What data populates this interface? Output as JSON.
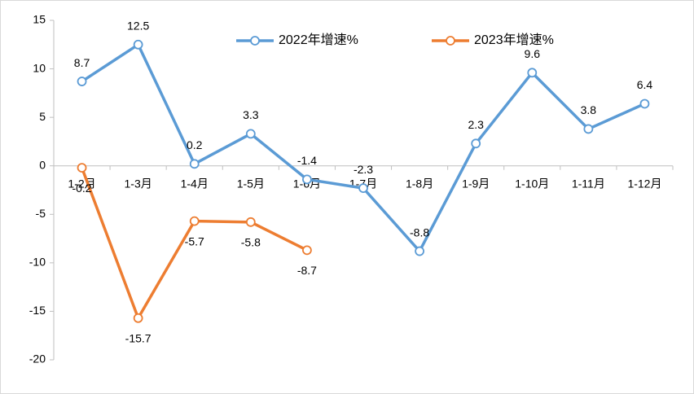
{
  "chart_data": {
    "type": "line",
    "categories": [
      "1-2月",
      "1-3月",
      "1-4月",
      "1-5月",
      "1-6月",
      "1-7月",
      "1-8月",
      "1-9月",
      "1-10月",
      "1-11月",
      "1-12月"
    ],
    "series": [
      {
        "name": "2022年增速%",
        "color": "#5b9bd5",
        "values": [
          8.7,
          12.5,
          0.2,
          3.3,
          -1.4,
          -2.3,
          -8.8,
          2.3,
          9.6,
          3.8,
          6.4
        ]
      },
      {
        "name": "2023年增速%",
        "color": "#ed7d31",
        "values": [
          -0.2,
          -15.7,
          -5.7,
          -5.8,
          -8.7,
          null,
          null,
          null,
          null,
          null,
          null
        ]
      }
    ],
    "ylim": [
      -20,
      15
    ],
    "yticks": [
      -20,
      -15,
      -10,
      -5,
      0,
      5,
      10,
      15
    ],
    "legend": "top"
  }
}
